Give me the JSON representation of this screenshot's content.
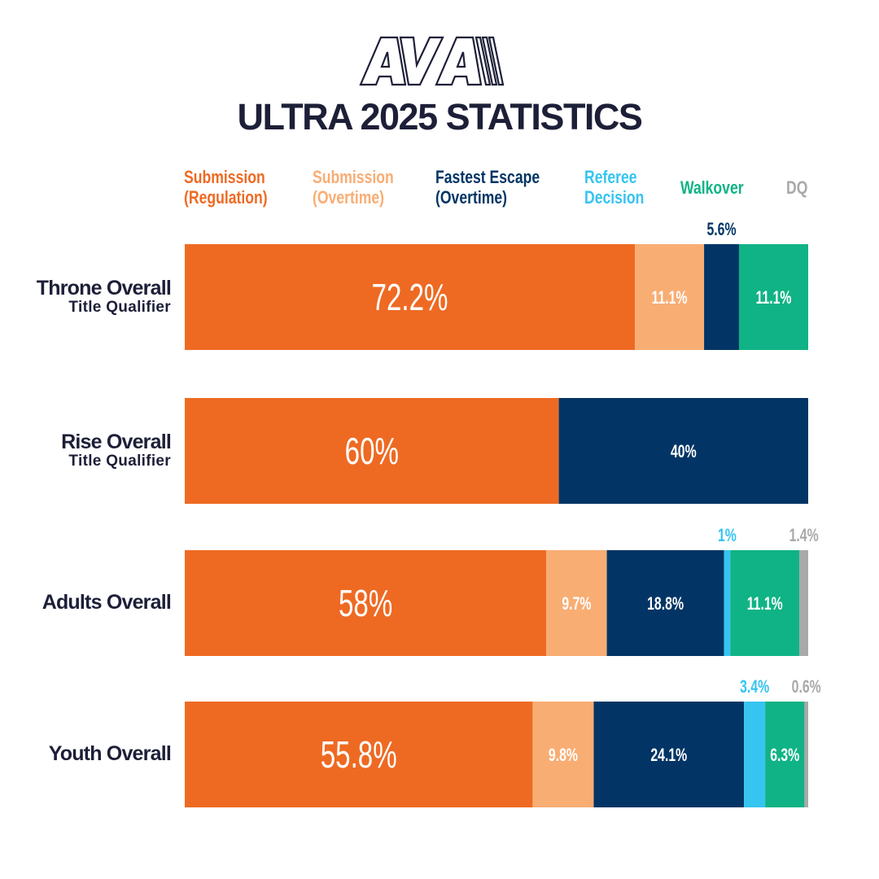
{
  "logo": {
    "text": "AVA",
    "color": "#1d1f38"
  },
  "title": "ULTRA 2025 STATISTICS",
  "chart_data": {
    "type": "bar",
    "orientation": "horizontal-stacked-100",
    "title": "ULTRA 2025 STATISTICS",
    "legend_position": "top",
    "grid": false,
    "xlim": [
      0,
      100
    ],
    "series": [
      {
        "name": "Submission (Regulation)",
        "legend": [
          "Submission",
          "(Regulation)"
        ],
        "color": "#ee6a23"
      },
      {
        "name": "Submission (Overtime)",
        "legend": [
          "Submission",
          "(Overtime)"
        ],
        "color": "#f8ad73"
      },
      {
        "name": "Fastest Escape (Overtime)",
        "legend": [
          "Fastest Escape",
          "(Overtime)"
        ],
        "color": "#023565"
      },
      {
        "name": "Referee Decision",
        "legend": [
          "Referee",
          "Decision"
        ],
        "color": "#36c4f1"
      },
      {
        "name": "Walkover",
        "legend": [
          "Walkover"
        ],
        "color": "#10b385"
      },
      {
        "name": "DQ",
        "legend": [
          "DQ"
        ],
        "color": "#a9a9a9"
      }
    ],
    "categories": [
      {
        "label": "Throne Overall",
        "sublabel": "Title Qualifier",
        "values": [
          72.2,
          11.1,
          5.6,
          0,
          11.1,
          0
        ],
        "labels": [
          "72.2%",
          "11.1%",
          "5.6%",
          "",
          "11.1%",
          ""
        ]
      },
      {
        "label": "Rise Overall",
        "sublabel": "Title Qualifier",
        "values": [
          60,
          0,
          40,
          0,
          0,
          0
        ],
        "labels": [
          "60%",
          "",
          "40%",
          "",
          "",
          ""
        ]
      },
      {
        "label": "Adults Overall",
        "sublabel": "",
        "values": [
          58,
          9.7,
          18.8,
          1,
          11.1,
          1.4
        ],
        "labels": [
          "58%",
          "9.7%",
          "18.8%",
          "1%",
          "11.1%",
          "1.4%"
        ]
      },
      {
        "label": "Youth Overall",
        "sublabel": "",
        "values": [
          55.8,
          9.8,
          24.1,
          3.4,
          6.3,
          0.6
        ],
        "labels": [
          "55.8%",
          "9.8%",
          "24.1%",
          "3.4%",
          "6.3%",
          "0.6%"
        ]
      }
    ]
  }
}
